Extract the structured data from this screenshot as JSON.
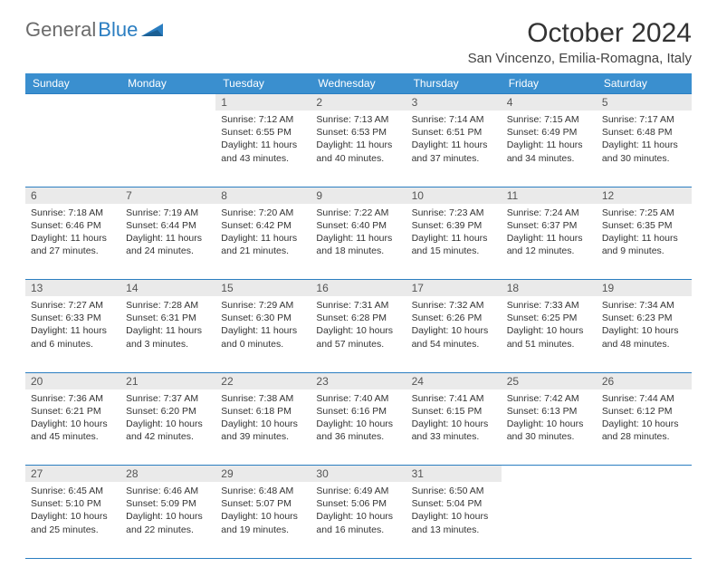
{
  "logo": {
    "part1": "General",
    "part2": "Blue"
  },
  "title": "October 2024",
  "location": "San Vincenzo, Emilia-Romagna, Italy",
  "day_headers": [
    "Sunday",
    "Monday",
    "Tuesday",
    "Wednesday",
    "Thursday",
    "Friday",
    "Saturday"
  ],
  "colors": {
    "header_bg": "#3a8fcf",
    "header_text": "#ffffff",
    "border": "#2b7ec1",
    "daynum_bg": "#eaeaea",
    "text": "#333333"
  },
  "weeks": [
    [
      {
        "n": "",
        "sunrise": "",
        "sunset": "",
        "daylight": ""
      },
      {
        "n": "",
        "sunrise": "",
        "sunset": "",
        "daylight": ""
      },
      {
        "n": "1",
        "sunrise": "Sunrise: 7:12 AM",
        "sunset": "Sunset: 6:55 PM",
        "daylight": "Daylight: 11 hours and 43 minutes."
      },
      {
        "n": "2",
        "sunrise": "Sunrise: 7:13 AM",
        "sunset": "Sunset: 6:53 PM",
        "daylight": "Daylight: 11 hours and 40 minutes."
      },
      {
        "n": "3",
        "sunrise": "Sunrise: 7:14 AM",
        "sunset": "Sunset: 6:51 PM",
        "daylight": "Daylight: 11 hours and 37 minutes."
      },
      {
        "n": "4",
        "sunrise": "Sunrise: 7:15 AM",
        "sunset": "Sunset: 6:49 PM",
        "daylight": "Daylight: 11 hours and 34 minutes."
      },
      {
        "n": "5",
        "sunrise": "Sunrise: 7:17 AM",
        "sunset": "Sunset: 6:48 PM",
        "daylight": "Daylight: 11 hours and 30 minutes."
      }
    ],
    [
      {
        "n": "6",
        "sunrise": "Sunrise: 7:18 AM",
        "sunset": "Sunset: 6:46 PM",
        "daylight": "Daylight: 11 hours and 27 minutes."
      },
      {
        "n": "7",
        "sunrise": "Sunrise: 7:19 AM",
        "sunset": "Sunset: 6:44 PM",
        "daylight": "Daylight: 11 hours and 24 minutes."
      },
      {
        "n": "8",
        "sunrise": "Sunrise: 7:20 AM",
        "sunset": "Sunset: 6:42 PM",
        "daylight": "Daylight: 11 hours and 21 minutes."
      },
      {
        "n": "9",
        "sunrise": "Sunrise: 7:22 AM",
        "sunset": "Sunset: 6:40 PM",
        "daylight": "Daylight: 11 hours and 18 minutes."
      },
      {
        "n": "10",
        "sunrise": "Sunrise: 7:23 AM",
        "sunset": "Sunset: 6:39 PM",
        "daylight": "Daylight: 11 hours and 15 minutes."
      },
      {
        "n": "11",
        "sunrise": "Sunrise: 7:24 AM",
        "sunset": "Sunset: 6:37 PM",
        "daylight": "Daylight: 11 hours and 12 minutes."
      },
      {
        "n": "12",
        "sunrise": "Sunrise: 7:25 AM",
        "sunset": "Sunset: 6:35 PM",
        "daylight": "Daylight: 11 hours and 9 minutes."
      }
    ],
    [
      {
        "n": "13",
        "sunrise": "Sunrise: 7:27 AM",
        "sunset": "Sunset: 6:33 PM",
        "daylight": "Daylight: 11 hours and 6 minutes."
      },
      {
        "n": "14",
        "sunrise": "Sunrise: 7:28 AM",
        "sunset": "Sunset: 6:31 PM",
        "daylight": "Daylight: 11 hours and 3 minutes."
      },
      {
        "n": "15",
        "sunrise": "Sunrise: 7:29 AM",
        "sunset": "Sunset: 6:30 PM",
        "daylight": "Daylight: 11 hours and 0 minutes."
      },
      {
        "n": "16",
        "sunrise": "Sunrise: 7:31 AM",
        "sunset": "Sunset: 6:28 PM",
        "daylight": "Daylight: 10 hours and 57 minutes."
      },
      {
        "n": "17",
        "sunrise": "Sunrise: 7:32 AM",
        "sunset": "Sunset: 6:26 PM",
        "daylight": "Daylight: 10 hours and 54 minutes."
      },
      {
        "n": "18",
        "sunrise": "Sunrise: 7:33 AM",
        "sunset": "Sunset: 6:25 PM",
        "daylight": "Daylight: 10 hours and 51 minutes."
      },
      {
        "n": "19",
        "sunrise": "Sunrise: 7:34 AM",
        "sunset": "Sunset: 6:23 PM",
        "daylight": "Daylight: 10 hours and 48 minutes."
      }
    ],
    [
      {
        "n": "20",
        "sunrise": "Sunrise: 7:36 AM",
        "sunset": "Sunset: 6:21 PM",
        "daylight": "Daylight: 10 hours and 45 minutes."
      },
      {
        "n": "21",
        "sunrise": "Sunrise: 7:37 AM",
        "sunset": "Sunset: 6:20 PM",
        "daylight": "Daylight: 10 hours and 42 minutes."
      },
      {
        "n": "22",
        "sunrise": "Sunrise: 7:38 AM",
        "sunset": "Sunset: 6:18 PM",
        "daylight": "Daylight: 10 hours and 39 minutes."
      },
      {
        "n": "23",
        "sunrise": "Sunrise: 7:40 AM",
        "sunset": "Sunset: 6:16 PM",
        "daylight": "Daylight: 10 hours and 36 minutes."
      },
      {
        "n": "24",
        "sunrise": "Sunrise: 7:41 AM",
        "sunset": "Sunset: 6:15 PM",
        "daylight": "Daylight: 10 hours and 33 minutes."
      },
      {
        "n": "25",
        "sunrise": "Sunrise: 7:42 AM",
        "sunset": "Sunset: 6:13 PM",
        "daylight": "Daylight: 10 hours and 30 minutes."
      },
      {
        "n": "26",
        "sunrise": "Sunrise: 7:44 AM",
        "sunset": "Sunset: 6:12 PM",
        "daylight": "Daylight: 10 hours and 28 minutes."
      }
    ],
    [
      {
        "n": "27",
        "sunrise": "Sunrise: 6:45 AM",
        "sunset": "Sunset: 5:10 PM",
        "daylight": "Daylight: 10 hours and 25 minutes."
      },
      {
        "n": "28",
        "sunrise": "Sunrise: 6:46 AM",
        "sunset": "Sunset: 5:09 PM",
        "daylight": "Daylight: 10 hours and 22 minutes."
      },
      {
        "n": "29",
        "sunrise": "Sunrise: 6:48 AM",
        "sunset": "Sunset: 5:07 PM",
        "daylight": "Daylight: 10 hours and 19 minutes."
      },
      {
        "n": "30",
        "sunrise": "Sunrise: 6:49 AM",
        "sunset": "Sunset: 5:06 PM",
        "daylight": "Daylight: 10 hours and 16 minutes."
      },
      {
        "n": "31",
        "sunrise": "Sunrise: 6:50 AM",
        "sunset": "Sunset: 5:04 PM",
        "daylight": "Daylight: 10 hours and 13 minutes."
      },
      {
        "n": "",
        "sunrise": "",
        "sunset": "",
        "daylight": ""
      },
      {
        "n": "",
        "sunrise": "",
        "sunset": "",
        "daylight": ""
      }
    ]
  ]
}
